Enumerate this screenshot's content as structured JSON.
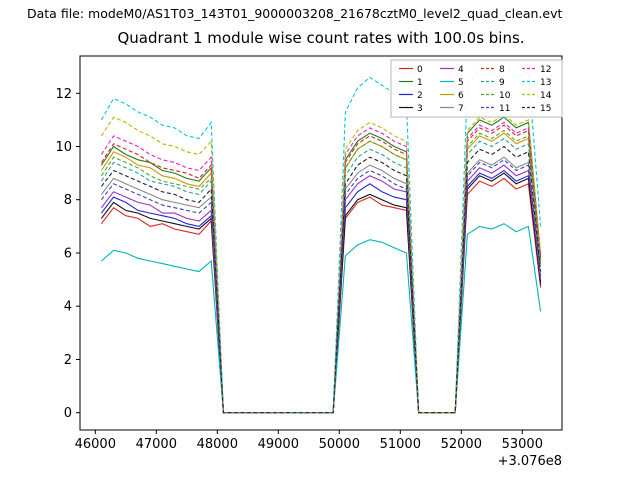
{
  "header": {
    "data_file_label": "Data file: modeM0/AS1T03_143T01_9000003208_21678cztM0_level2_quad_clean.evt"
  },
  "chart_data": {
    "type": "line",
    "title": "Quadrant 1 module wise count rates with 100.0s bins.",
    "xlabel": "",
    "ylabel": "",
    "x_offset_label": "+3.076e8",
    "xlim": [
      45750,
      53650
    ],
    "ylim": [
      -0.65,
      13.4
    ],
    "xticks": [
      46000,
      47000,
      48000,
      49000,
      50000,
      51000,
      52000,
      53000
    ],
    "yticks": [
      0,
      2,
      4,
      6,
      8,
      10,
      12
    ],
    "grid": false,
    "legend_position": "upper right",
    "legend_columns": 4,
    "x": [
      46100,
      46300,
      46500,
      46700,
      46900,
      47100,
      47300,
      47500,
      47700,
      47900,
      48100,
      48300,
      48500,
      48700,
      48900,
      49100,
      49300,
      49500,
      49700,
      49900,
      50100,
      50300,
      50500,
      50700,
      50900,
      51100,
      51300,
      51500,
      51700,
      51900,
      52100,
      52300,
      52500,
      52700,
      52900,
      53100,
      53300
    ],
    "series": [
      {
        "name": "0",
        "color": "#dd2222",
        "dash": false,
        "values": [
          7.1,
          7.7,
          7.4,
          7.3,
          7.0,
          7.1,
          6.9,
          6.8,
          6.7,
          7.2,
          0,
          0,
          0,
          0,
          0,
          0,
          0,
          0,
          0,
          0,
          7.3,
          7.9,
          8.1,
          7.8,
          7.7,
          7.6,
          0,
          0,
          0,
          0,
          8.2,
          8.7,
          8.5,
          8.8,
          8.4,
          8.6,
          4.7
        ]
      },
      {
        "name": "1",
        "color": "#1f7a1f",
        "dash": false,
        "values": [
          9.3,
          10.0,
          9.7,
          9.5,
          9.4,
          9.1,
          9.0,
          8.8,
          8.7,
          9.2,
          0,
          0,
          0,
          0,
          0,
          0,
          0,
          0,
          0,
          0,
          9.5,
          10.2,
          10.5,
          10.3,
          10.0,
          9.8,
          0,
          0,
          0,
          0,
          10.5,
          11.0,
          10.8,
          11.1,
          10.7,
          10.9,
          5.9
        ]
      },
      {
        "name": "2",
        "color": "#2222dd",
        "dash": false,
        "values": [
          7.5,
          8.1,
          7.9,
          7.6,
          7.5,
          7.4,
          7.3,
          7.1,
          7.0,
          7.4,
          0,
          0,
          0,
          0,
          0,
          0,
          0,
          0,
          0,
          0,
          7.7,
          8.3,
          8.6,
          8.3,
          8.1,
          8.0,
          0,
          0,
          0,
          0,
          8.5,
          9.0,
          8.8,
          9.1,
          8.7,
          8.9,
          4.8
        ]
      },
      {
        "name": "3",
        "color": "#111111",
        "dash": false,
        "values": [
          7.3,
          7.9,
          7.6,
          7.5,
          7.3,
          7.2,
          7.1,
          7.0,
          6.9,
          7.3,
          0,
          0,
          0,
          0,
          0,
          0,
          0,
          0,
          0,
          0,
          7.4,
          8.0,
          8.2,
          8.0,
          7.8,
          7.7,
          0,
          0,
          0,
          0,
          8.4,
          8.9,
          8.7,
          9.0,
          8.6,
          8.8,
          4.9
        ]
      },
      {
        "name": "4",
        "color": "#9933bb",
        "dash": false,
        "values": [
          7.7,
          8.3,
          8.1,
          7.9,
          7.8,
          7.5,
          7.5,
          7.3,
          7.2,
          7.6,
          0,
          0,
          0,
          0,
          0,
          0,
          0,
          0,
          0,
          0,
          8.0,
          8.6,
          8.9,
          8.7,
          8.4,
          8.3,
          0,
          0,
          0,
          0,
          8.7,
          9.2,
          9.0,
          9.3,
          8.9,
          9.1,
          5.0
        ]
      },
      {
        "name": "5",
        "color": "#00b5b5",
        "dash": false,
        "values": [
          5.7,
          6.1,
          6.0,
          5.8,
          5.7,
          5.6,
          5.5,
          5.4,
          5.3,
          5.7,
          0,
          0,
          0,
          0,
          0,
          0,
          0,
          0,
          0,
          0,
          5.9,
          6.3,
          6.5,
          6.4,
          6.2,
          6.0,
          0,
          0,
          0,
          0,
          6.7,
          7.0,
          6.9,
          7.1,
          6.8,
          7.0,
          3.8
        ]
      },
      {
        "name": "6",
        "color": "#cc9900",
        "dash": false,
        "values": [
          9.1,
          9.8,
          9.6,
          9.3,
          9.2,
          8.9,
          8.8,
          8.6,
          8.5,
          9.0,
          0,
          0,
          0,
          0,
          0,
          0,
          0,
          0,
          0,
          0,
          9.2,
          9.9,
          10.2,
          10.0,
          9.7,
          9.5,
          0,
          0,
          0,
          0,
          9.9,
          10.4,
          10.2,
          10.5,
          10.1,
          10.3,
          5.6
        ]
      },
      {
        "name": "7",
        "color": "#888888",
        "dash": false,
        "values": [
          8.2,
          8.8,
          8.6,
          8.4,
          8.2,
          8.0,
          7.9,
          7.8,
          7.7,
          8.1,
          0,
          0,
          0,
          0,
          0,
          0,
          0,
          0,
          0,
          0,
          8.4,
          9.0,
          9.3,
          9.1,
          8.8,
          8.6,
          0,
          0,
          0,
          0,
          9.0,
          9.5,
          9.3,
          9.6,
          9.2,
          9.4,
          5.1
        ]
      },
      {
        "name": "8",
        "color": "#dd2222",
        "dash": true,
        "values": [
          9.4,
          10.1,
          9.9,
          9.7,
          9.4,
          9.2,
          9.1,
          9.0,
          8.8,
          9.3,
          0,
          0,
          0,
          0,
          0,
          0,
          0,
          0,
          0,
          0,
          9.4,
          10.1,
          10.4,
          10.2,
          9.9,
          9.7,
          0,
          0,
          0,
          0,
          10.2,
          10.7,
          10.5,
          10.8,
          10.4,
          10.6,
          5.8
        ]
      },
      {
        "name": "9",
        "color": "#2f9e9e",
        "dash": true,
        "values": [
          8.7,
          9.4,
          9.2,
          9.0,
          8.7,
          8.6,
          8.5,
          8.3,
          8.2,
          8.7,
          0,
          0,
          0,
          0,
          0,
          0,
          0,
          0,
          0,
          0,
          8.9,
          9.6,
          9.9,
          9.7,
          9.4,
          9.2,
          0,
          0,
          0,
          0,
          9.7,
          10.2,
          10.0,
          10.3,
          9.9,
          10.1,
          5.5
        ]
      },
      {
        "name": "10",
        "color": "#4daa22",
        "dash": true,
        "values": [
          8.9,
          9.6,
          9.4,
          9.2,
          8.9,
          8.7,
          8.6,
          8.5,
          8.4,
          8.8,
          0,
          0,
          0,
          0,
          0,
          0,
          0,
          0,
          0,
          0,
          9.2,
          9.9,
          10.2,
          10.0,
          9.7,
          9.5,
          0,
          0,
          0,
          0,
          10.0,
          10.5,
          10.3,
          10.6,
          10.2,
          10.4,
          5.7
        ]
      },
      {
        "name": "11",
        "color": "#3344bb",
        "dash": true,
        "values": [
          8.0,
          8.6,
          8.4,
          8.2,
          8.0,
          7.8,
          7.7,
          7.6,
          7.5,
          7.9,
          0,
          0,
          0,
          0,
          0,
          0,
          0,
          0,
          0,
          0,
          8.2,
          8.8,
          9.1,
          8.9,
          8.6,
          8.4,
          0,
          0,
          0,
          0,
          8.9,
          9.4,
          9.2,
          9.5,
          9.1,
          9.3,
          5.1
        ]
      },
      {
        "name": "12",
        "color": "#dd22cc",
        "dash": true,
        "values": [
          9.7,
          10.4,
          10.2,
          10.0,
          9.7,
          9.5,
          9.4,
          9.2,
          9.1,
          9.6,
          0,
          0,
          0,
          0,
          0,
          0,
          0,
          0,
          0,
          0,
          9.7,
          10.4,
          10.7,
          10.5,
          10.2,
          10.0,
          0,
          0,
          0,
          0,
          10.3,
          10.8,
          10.6,
          10.9,
          10.5,
          10.7,
          5.8
        ]
      },
      {
        "name": "13",
        "color": "#00c8d8",
        "dash": true,
        "values": [
          11.0,
          11.8,
          11.6,
          11.3,
          11.1,
          10.8,
          10.7,
          10.4,
          10.3,
          10.9,
          0,
          0,
          0,
          0,
          0,
          0,
          0,
          0,
          0,
          0,
          11.3,
          12.2,
          12.6,
          12.3,
          12.0,
          11.7,
          0,
          0,
          0,
          0,
          12.3,
          12.9,
          12.7,
          13.0,
          12.6,
          12.8,
          7.0
        ]
      },
      {
        "name": "14",
        "color": "#b8b800",
        "dash": true,
        "values": [
          10.4,
          11.1,
          10.9,
          10.6,
          10.4,
          10.1,
          10.0,
          9.8,
          9.7,
          10.2,
          0,
          0,
          0,
          0,
          0,
          0,
          0,
          0,
          0,
          0,
          9.9,
          10.6,
          10.9,
          10.7,
          10.4,
          10.2,
          0,
          0,
          0,
          0,
          10.6,
          11.1,
          10.9,
          11.2,
          10.8,
          11.0,
          6.0
        ]
      },
      {
        "name": "15",
        "color": "#222222",
        "dash": true,
        "values": [
          8.5,
          9.1,
          8.9,
          8.7,
          8.5,
          8.3,
          8.2,
          8.0,
          7.9,
          8.4,
          0,
          0,
          0,
          0,
          0,
          0,
          0,
          0,
          0,
          0,
          8.6,
          9.3,
          9.6,
          9.4,
          9.1,
          8.9,
          0,
          0,
          0,
          0,
          9.4,
          9.9,
          9.7,
          10.0,
          9.6,
          9.8,
          5.3
        ]
      }
    ]
  }
}
